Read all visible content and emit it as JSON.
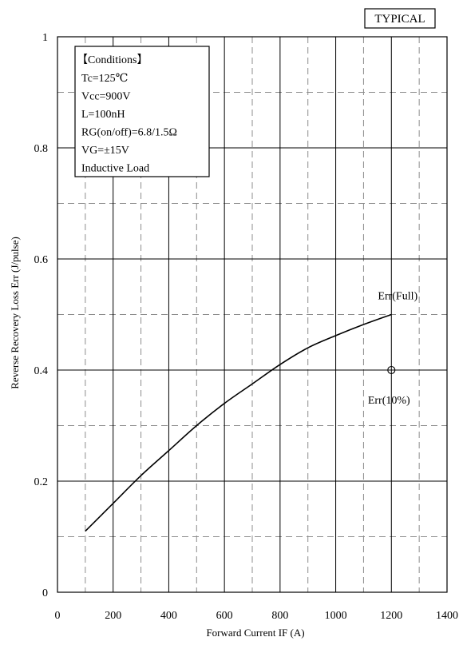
{
  "chart_data": {
    "type": "line",
    "title": "",
    "badge": "TYPICAL",
    "xlabel": "Forward Current    IF (A)",
    "ylabel": "Reverse Recovery Loss   Err (J/pulse)",
    "xlim": [
      0,
      1400
    ],
    "ylim": [
      0,
      1
    ],
    "x_major_ticks": [
      0,
      200,
      400,
      600,
      800,
      1000,
      1200,
      1400
    ],
    "x_tick_labels": [
      "0",
      "200",
      "400",
      "600",
      "800",
      "1000",
      "1200",
      "1400"
    ],
    "y_major_ticks": [
      0,
      0.2,
      0.4,
      0.6,
      0.8,
      1
    ],
    "y_tick_labels": [
      "0",
      "0.2",
      "0.4",
      "0.6",
      "0.8",
      "1"
    ],
    "x_minor_ticks": [
      100,
      300,
      500,
      700,
      900,
      1100,
      1300
    ],
    "y_minor_ticks": [
      0.1,
      0.3,
      0.5,
      0.7,
      0.9
    ],
    "grid": true,
    "conditions": {
      "heading": "【Conditions】",
      "lines": [
        "Tc=125℃",
        "Vcc=900V",
        "L=100nH",
        "RG(on/off)=6.8/1.5Ω",
        "VG=±15V",
        "Inductive Load"
      ]
    },
    "series": [
      {
        "name": "Err(Full)",
        "style": "line",
        "x": [
          100,
          200,
          300,
          400,
          500,
          600,
          700,
          800,
          900,
          1000,
          1100,
          1200
        ],
        "values": [
          0.11,
          0.16,
          0.21,
          0.255,
          0.3,
          0.34,
          0.375,
          0.41,
          0.44,
          0.462,
          0.482,
          0.5
        ]
      },
      {
        "name": "Err(10%)",
        "style": "marker",
        "x": [
          1200
        ],
        "values": [
          0.4
        ]
      }
    ]
  }
}
